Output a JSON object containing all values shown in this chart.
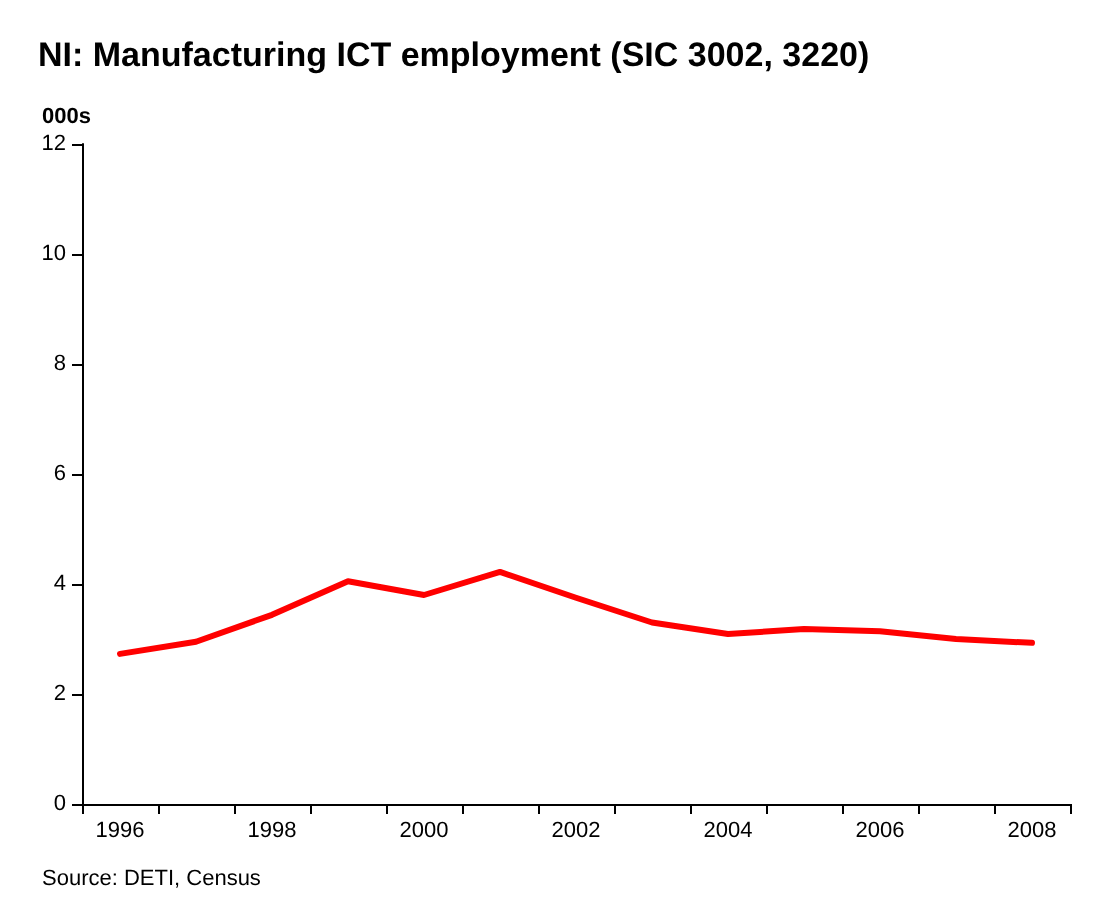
{
  "chart_data": {
    "type": "line",
    "title": "NI: Manufacturing ICT employment (SIC 3002, 3220)",
    "ylabel": "000s",
    "annotations": [
      "Source: DETI, Census"
    ],
    "categories": [
      "1996",
      null,
      "1998",
      null,
      "2000",
      null,
      "2002",
      null,
      "2004",
      null,
      "2006",
      null,
      "2008"
    ],
    "series": [
      {
        "color": "#ff0000",
        "values": [
          2.73,
          2.95,
          3.44,
          4.05,
          3.8,
          4.22,
          3.75,
          3.3,
          3.09,
          3.18,
          3.14,
          3.0,
          2.93
        ]
      }
    ],
    "ylim": [
      0,
      12
    ],
    "yticks": [
      0,
      2,
      4,
      6,
      8,
      10,
      12
    ],
    "grid": false,
    "marker": "none",
    "line_style": "solid"
  }
}
